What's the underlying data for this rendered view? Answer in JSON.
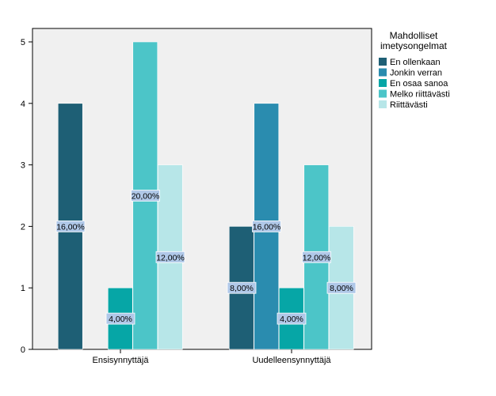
{
  "chart_data": {
    "type": "bar",
    "categories": [
      "Ensisynnyttäjä",
      "Uudelleensynnyttäjä"
    ],
    "ylim": [
      0,
      5
    ],
    "yticks": [
      "0",
      "1",
      "2",
      "3",
      "4",
      "5"
    ],
    "grid": false,
    "legend": {
      "title": "Mahdolliset imetysongelmat",
      "title_lines": [
        "Mahdolliset",
        "imetysongelmat"
      ],
      "placement": "right"
    },
    "series": [
      {
        "name": "En ollenkaan",
        "color": "#1e5f75",
        "values": [
          4,
          2
        ],
        "labels": [
          "16,00%",
          "8,00%"
        ]
      },
      {
        "name": "Jonkin verran",
        "color": "#2a8caf",
        "values": [
          0,
          4
        ],
        "labels": [
          "",
          "16,00%"
        ]
      },
      {
        "name": "En osaa sanoa",
        "color": "#06a6a6",
        "values": [
          1,
          1
        ],
        "labels": [
          "4,00%",
          "4,00%"
        ]
      },
      {
        "name": "Melko riittävästi",
        "color": "#4cc5c8",
        "values": [
          5,
          3
        ],
        "labels": [
          "20,00%",
          "12,00%"
        ]
      },
      {
        "name": "Riittävästi",
        "color": "#b7e6e8",
        "values": [
          3,
          2
        ],
        "labels": [
          "12,00%",
          "8,00%"
        ]
      }
    ]
  }
}
